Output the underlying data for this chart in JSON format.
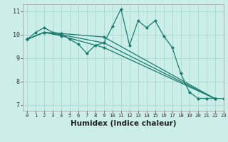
{
  "background_color": "#cceee8",
  "grid_color": "#aad8d0",
  "line_color": "#1a7a6e",
  "xlabel": "Humidex (Indice chaleur)",
  "xlim": [
    -0.5,
    23
  ],
  "ylim": [
    6.75,
    11.3
  ],
  "yticks": [
    7,
    8,
    9,
    10,
    11
  ],
  "xticks": [
    0,
    1,
    2,
    3,
    4,
    5,
    6,
    7,
    8,
    9,
    10,
    11,
    12,
    13,
    14,
    15,
    16,
    17,
    18,
    19,
    20,
    21,
    22,
    23
  ],
  "series1_x": [
    0,
    1,
    2,
    3,
    4,
    5,
    6,
    7,
    8,
    9,
    10,
    11,
    12,
    13,
    14,
    15,
    16,
    17,
    18,
    19,
    20,
    21,
    22,
    23
  ],
  "series1_y": [
    9.8,
    10.1,
    10.3,
    10.1,
    10.05,
    9.8,
    9.6,
    9.2,
    9.55,
    9.65,
    10.35,
    11.1,
    9.55,
    10.6,
    10.3,
    10.6,
    9.95,
    9.45,
    8.35,
    7.55,
    7.28,
    7.28,
    7.28,
    7.27
  ],
  "series2_x": [
    0,
    2,
    4,
    9,
    22
  ],
  "series2_y": [
    9.8,
    10.1,
    10.05,
    9.9,
    7.27
  ],
  "series3_x": [
    0,
    2,
    4,
    9,
    22
  ],
  "series3_y": [
    9.8,
    10.1,
    10.0,
    9.65,
    7.27
  ],
  "series4_x": [
    0,
    2,
    4,
    9,
    22
  ],
  "series4_y": [
    9.8,
    10.1,
    9.95,
    9.45,
    7.27
  ],
  "marker": "D",
  "marker_size": 2.5,
  "line_width": 0.9,
  "tick_fontsize": 6.0,
  "xlabel_fontsize": 7.5,
  "xlabel_fontweight": "bold"
}
